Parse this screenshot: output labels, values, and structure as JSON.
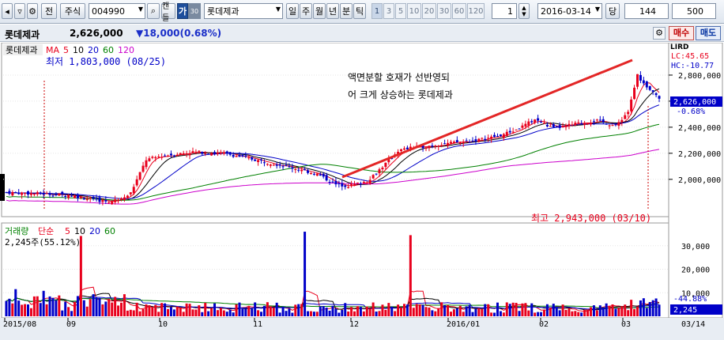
{
  "toolbar": {
    "cycle_label": "전",
    "market": "주식",
    "code": "004990",
    "chart_type_label": "캔들",
    "ka_label": "가",
    "ka_sub": "30",
    "stock_name": "롯데제과",
    "periods": [
      "일",
      "주",
      "월",
      "년",
      "분",
      "틱"
    ],
    "intervals": [
      "1",
      "3",
      "5",
      "10",
      "20",
      "30",
      "60",
      "120"
    ],
    "selected_interval": "1",
    "count": "1",
    "date": "2016-03-14",
    "dang_label": "당",
    "bars": "144",
    "zoom": "500"
  },
  "infobar": {
    "name": "롯데제과",
    "price": "2,626,000",
    "change": "▼18,000(0.68%)",
    "buy_label": "매수",
    "sell_label": "매도"
  },
  "price_panel": {
    "ma_name": "롯데제과",
    "ma_label": "MA",
    "ma_periods": [
      "5",
      "10",
      "20",
      "60",
      "120"
    ],
    "ma_colors": [
      "#e8001c",
      "#000000",
      "#0000c8",
      "#008000",
      "#cc00cc"
    ],
    "low_label": "최저 1,803,000 (08/25)",
    "high_label": "최고 2,943,000 (03/10)",
    "annotation_line1": "액면분할 호재가 선반영되",
    "annotation_line2": "어 크게 상승하는 롯데제과",
    "lc": "LC:45.65",
    "hc": "HC:-10.77",
    "y_ticks": [
      "2,800,000",
      "2,600,000",
      "2,400,000",
      "2,200,000",
      "2,000,000"
    ],
    "current_price": "2,626,000",
    "current_change": "-0.68%"
  },
  "volume_panel": {
    "label": "거래량",
    "type_label": "단순",
    "ma_periods": [
      "5",
      "10",
      "20",
      "60"
    ],
    "ma_colors": [
      "#e8001c",
      "#000000",
      "#0000c8",
      "#008000"
    ],
    "value_label": "2,245주(55.12%)",
    "y_ticks": [
      "30,000",
      "20,000",
      "10,000"
    ],
    "current_change": "-44.88%",
    "current_volume": "2,245"
  },
  "x_axis": {
    "labels": [
      "2015/08",
      "09",
      "10",
      "11",
      "12",
      "2016/01",
      "02",
      "03"
    ],
    "right_label": "03/14"
  },
  "chart_data": {
    "type": "candlestick",
    "up_color": "#e8001c",
    "down_color": "#0000c8",
    "price_range": [
      1750000,
      3000000
    ],
    "volume_range": [
      0,
      37000
    ],
    "key_points": [
      {
        "date": "08/25",
        "low": 1803000
      },
      {
        "date": "03/10",
        "high": 2943000
      },
      {
        "date": "03/14",
        "close": 2626000,
        "change_pct": -0.68,
        "volume": 2245
      }
    ]
  }
}
